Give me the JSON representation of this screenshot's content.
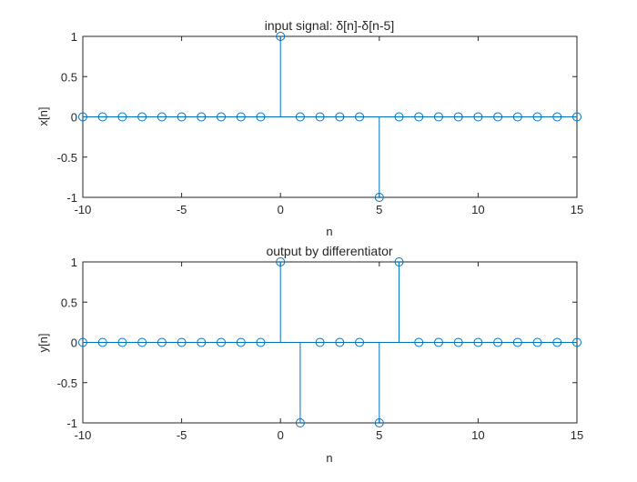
{
  "chart_data": [
    {
      "type": "stem",
      "title": "input signal: δ[n]-δ[n-5]",
      "xlabel": "n",
      "ylabel": "x[n]",
      "xlim": [
        -10,
        15
      ],
      "ylim": [
        -1,
        1
      ],
      "xticks": [
        -10,
        -5,
        0,
        5,
        10,
        15
      ],
      "yticks": [
        1,
        0.5,
        0,
        -0.5,
        -1
      ],
      "grid": false,
      "color": "#0072BD",
      "x": [
        -10,
        -9,
        -8,
        -7,
        -6,
        -5,
        -4,
        -3,
        -2,
        -1,
        0,
        1,
        2,
        3,
        4,
        5,
        6,
        7,
        8,
        9,
        10,
        11,
        12,
        13,
        14,
        15
      ],
      "y": [
        0,
        0,
        0,
        0,
        0,
        0,
        0,
        0,
        0,
        0,
        1,
        0,
        0,
        0,
        0,
        -1,
        0,
        0,
        0,
        0,
        0,
        0,
        0,
        0,
        0,
        0
      ]
    },
    {
      "type": "stem",
      "title": "output by differentiator",
      "xlabel": "n",
      "ylabel": "y[n]",
      "xlim": [
        -10,
        15
      ],
      "ylim": [
        -1,
        1
      ],
      "xticks": [
        -10,
        -5,
        0,
        5,
        10,
        15
      ],
      "yticks": [
        1,
        0.5,
        0,
        -0.5,
        -1
      ],
      "grid": false,
      "color": "#0072BD",
      "x": [
        -10,
        -9,
        -8,
        -7,
        -6,
        -5,
        -4,
        -3,
        -2,
        -1,
        0,
        1,
        2,
        3,
        4,
        5,
        6,
        7,
        8,
        9,
        10,
        11,
        12,
        13,
        14,
        15
      ],
      "y": [
        0,
        0,
        0,
        0,
        0,
        0,
        0,
        0,
        0,
        0,
        1,
        -1,
        0,
        0,
        0,
        -1,
        1,
        0,
        0,
        0,
        0,
        0,
        0,
        0,
        0,
        0
      ]
    }
  ]
}
